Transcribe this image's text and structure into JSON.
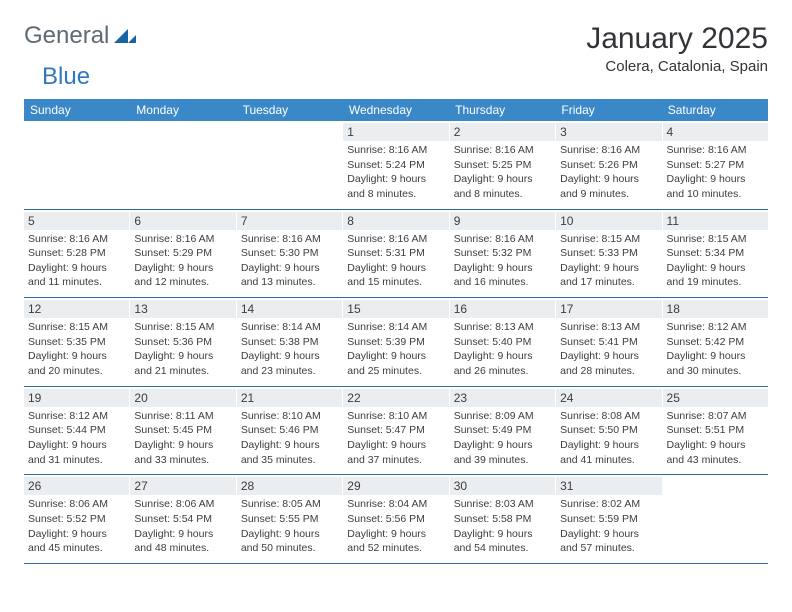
{
  "logo": {
    "word1": "General",
    "word2": "Blue",
    "mark_color": "#1763a6"
  },
  "title": {
    "main": "January 2025",
    "sub": "Colera, Catalonia, Spain"
  },
  "colors": {
    "header_bar": "#3b88c8",
    "week_border": "#2e6ca8",
    "day_strip_bg": "#ebeef1",
    "text": "#3b3d41",
    "logo_gray": "#5e6a75",
    "logo_blue": "#3277bd"
  },
  "dayNames": [
    "Sunday",
    "Monday",
    "Tuesday",
    "Wednesday",
    "Thursday",
    "Friday",
    "Saturday"
  ],
  "weeks": [
    [
      {
        "day": "",
        "lines": []
      },
      {
        "day": "",
        "lines": []
      },
      {
        "day": "",
        "lines": []
      },
      {
        "day": "1",
        "lines": [
          "Sunrise: 8:16 AM",
          "Sunset: 5:24 PM",
          "Daylight: 9 hours",
          "and 8 minutes."
        ]
      },
      {
        "day": "2",
        "lines": [
          "Sunrise: 8:16 AM",
          "Sunset: 5:25 PM",
          "Daylight: 9 hours",
          "and 8 minutes."
        ]
      },
      {
        "day": "3",
        "lines": [
          "Sunrise: 8:16 AM",
          "Sunset: 5:26 PM",
          "Daylight: 9 hours",
          "and 9 minutes."
        ]
      },
      {
        "day": "4",
        "lines": [
          "Sunrise: 8:16 AM",
          "Sunset: 5:27 PM",
          "Daylight: 9 hours",
          "and 10 minutes."
        ]
      }
    ],
    [
      {
        "day": "5",
        "lines": [
          "Sunrise: 8:16 AM",
          "Sunset: 5:28 PM",
          "Daylight: 9 hours",
          "and 11 minutes."
        ]
      },
      {
        "day": "6",
        "lines": [
          "Sunrise: 8:16 AM",
          "Sunset: 5:29 PM",
          "Daylight: 9 hours",
          "and 12 minutes."
        ]
      },
      {
        "day": "7",
        "lines": [
          "Sunrise: 8:16 AM",
          "Sunset: 5:30 PM",
          "Daylight: 9 hours",
          "and 13 minutes."
        ]
      },
      {
        "day": "8",
        "lines": [
          "Sunrise: 8:16 AM",
          "Sunset: 5:31 PM",
          "Daylight: 9 hours",
          "and 15 minutes."
        ]
      },
      {
        "day": "9",
        "lines": [
          "Sunrise: 8:16 AM",
          "Sunset: 5:32 PM",
          "Daylight: 9 hours",
          "and 16 minutes."
        ]
      },
      {
        "day": "10",
        "lines": [
          "Sunrise: 8:15 AM",
          "Sunset: 5:33 PM",
          "Daylight: 9 hours",
          "and 17 minutes."
        ]
      },
      {
        "day": "11",
        "lines": [
          "Sunrise: 8:15 AM",
          "Sunset: 5:34 PM",
          "Daylight: 9 hours",
          "and 19 minutes."
        ]
      }
    ],
    [
      {
        "day": "12",
        "lines": [
          "Sunrise: 8:15 AM",
          "Sunset: 5:35 PM",
          "Daylight: 9 hours",
          "and 20 minutes."
        ]
      },
      {
        "day": "13",
        "lines": [
          "Sunrise: 8:15 AM",
          "Sunset: 5:36 PM",
          "Daylight: 9 hours",
          "and 21 minutes."
        ]
      },
      {
        "day": "14",
        "lines": [
          "Sunrise: 8:14 AM",
          "Sunset: 5:38 PM",
          "Daylight: 9 hours",
          "and 23 minutes."
        ]
      },
      {
        "day": "15",
        "lines": [
          "Sunrise: 8:14 AM",
          "Sunset: 5:39 PM",
          "Daylight: 9 hours",
          "and 25 minutes."
        ]
      },
      {
        "day": "16",
        "lines": [
          "Sunrise: 8:13 AM",
          "Sunset: 5:40 PM",
          "Daylight: 9 hours",
          "and 26 minutes."
        ]
      },
      {
        "day": "17",
        "lines": [
          "Sunrise: 8:13 AM",
          "Sunset: 5:41 PM",
          "Daylight: 9 hours",
          "and 28 minutes."
        ]
      },
      {
        "day": "18",
        "lines": [
          "Sunrise: 8:12 AM",
          "Sunset: 5:42 PM",
          "Daylight: 9 hours",
          "and 30 minutes."
        ]
      }
    ],
    [
      {
        "day": "19",
        "lines": [
          "Sunrise: 8:12 AM",
          "Sunset: 5:44 PM",
          "Daylight: 9 hours",
          "and 31 minutes."
        ]
      },
      {
        "day": "20",
        "lines": [
          "Sunrise: 8:11 AM",
          "Sunset: 5:45 PM",
          "Daylight: 9 hours",
          "and 33 minutes."
        ]
      },
      {
        "day": "21",
        "lines": [
          "Sunrise: 8:10 AM",
          "Sunset: 5:46 PM",
          "Daylight: 9 hours",
          "and 35 minutes."
        ]
      },
      {
        "day": "22",
        "lines": [
          "Sunrise: 8:10 AM",
          "Sunset: 5:47 PM",
          "Daylight: 9 hours",
          "and 37 minutes."
        ]
      },
      {
        "day": "23",
        "lines": [
          "Sunrise: 8:09 AM",
          "Sunset: 5:49 PM",
          "Daylight: 9 hours",
          "and 39 minutes."
        ]
      },
      {
        "day": "24",
        "lines": [
          "Sunrise: 8:08 AM",
          "Sunset: 5:50 PM",
          "Daylight: 9 hours",
          "and 41 minutes."
        ]
      },
      {
        "day": "25",
        "lines": [
          "Sunrise: 8:07 AM",
          "Sunset: 5:51 PM",
          "Daylight: 9 hours",
          "and 43 minutes."
        ]
      }
    ],
    [
      {
        "day": "26",
        "lines": [
          "Sunrise: 8:06 AM",
          "Sunset: 5:52 PM",
          "Daylight: 9 hours",
          "and 45 minutes."
        ]
      },
      {
        "day": "27",
        "lines": [
          "Sunrise: 8:06 AM",
          "Sunset: 5:54 PM",
          "Daylight: 9 hours",
          "and 48 minutes."
        ]
      },
      {
        "day": "28",
        "lines": [
          "Sunrise: 8:05 AM",
          "Sunset: 5:55 PM",
          "Daylight: 9 hours",
          "and 50 minutes."
        ]
      },
      {
        "day": "29",
        "lines": [
          "Sunrise: 8:04 AM",
          "Sunset: 5:56 PM",
          "Daylight: 9 hours",
          "and 52 minutes."
        ]
      },
      {
        "day": "30",
        "lines": [
          "Sunrise: 8:03 AM",
          "Sunset: 5:58 PM",
          "Daylight: 9 hours",
          "and 54 minutes."
        ]
      },
      {
        "day": "31",
        "lines": [
          "Sunrise: 8:02 AM",
          "Sunset: 5:59 PM",
          "Daylight: 9 hours",
          "and 57 minutes."
        ]
      },
      {
        "day": "",
        "lines": []
      }
    ]
  ]
}
